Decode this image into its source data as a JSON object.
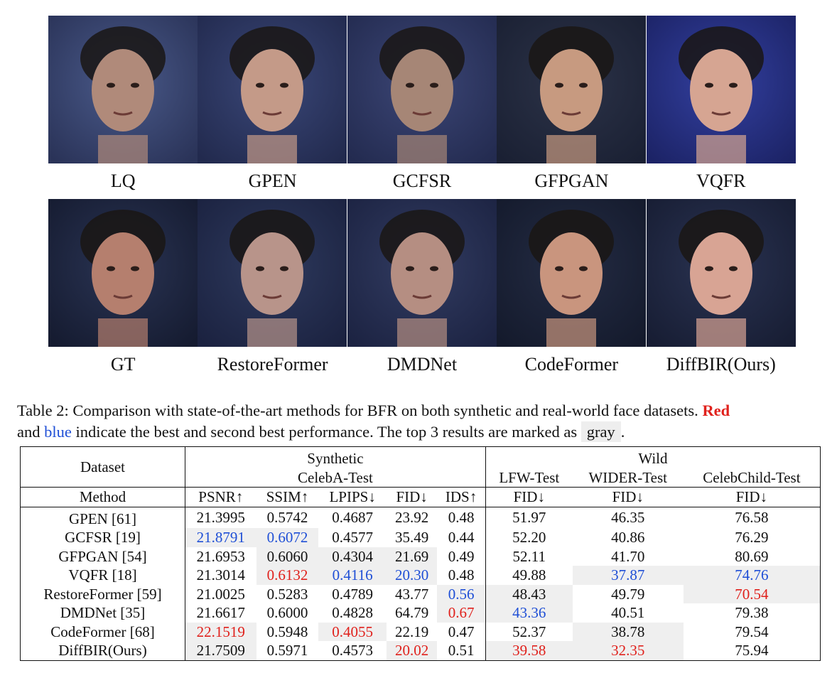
{
  "figure": {
    "row1_labels": [
      "LQ",
      "GPEN",
      "GCFSR",
      "GFPGAN",
      "VQFR"
    ],
    "row2_labels": [
      "GT",
      "RestoreFormer",
      "DMDNet",
      "CodeFormer",
      "DiffBIR(Ours)"
    ]
  },
  "caption": {
    "prefix": "Table 2: Comparison with state-of-the-art methods for BFR on both synthetic and real-world face datasets.",
    "red_word": "Red",
    "and": "and",
    "blue_word": "blue",
    "middle": "indicate the best and second best performance. The top 3 results are marked as",
    "gray_word": "gray",
    "end": "."
  },
  "table": {
    "dataset_label": "Dataset",
    "method_label": "Method",
    "synthetic_label": "Synthetic",
    "celeba_label": "CelebA-Test",
    "wild_label": "Wild",
    "wild_sets": [
      "LFW-Test",
      "WIDER-Test",
      "CelebChild-Test"
    ],
    "metrics": [
      "PSNR↑",
      "SSIM↑",
      "LPIPS↓",
      "FID↓",
      "IDS↑",
      "FID↓",
      "FID↓",
      "FID↓"
    ],
    "rows": [
      {
        "method": "GPEN [61]",
        "values": [
          "21.3995",
          "0.5742",
          "0.4687",
          "23.92",
          "0.48",
          "51.97",
          "46.35",
          "76.58"
        ],
        "styles": [
          "",
          "",
          "",
          "",
          "",
          "",
          "",
          ""
        ]
      },
      {
        "method": "GCFSR [19]",
        "values": [
          "21.8791",
          "0.6072",
          "0.4577",
          "35.49",
          "0.44",
          "52.20",
          "40.86",
          "76.29"
        ],
        "styles": [
          "b",
          "b",
          "",
          "",
          "",
          "",
          "",
          ""
        ]
      },
      {
        "method": "GFPGAN [54]",
        "values": [
          "21.6953",
          "0.6060",
          "0.4304",
          "21.69",
          "0.49",
          "52.11",
          "41.70",
          "80.69"
        ],
        "styles": [
          "",
          "g",
          "g",
          "g",
          "",
          "",
          "",
          ""
        ]
      },
      {
        "method": "VQFR [18]",
        "values": [
          "21.3014",
          "0.6132",
          "0.4116",
          "20.30",
          "0.48",
          "49.88",
          "37.87",
          "74.76"
        ],
        "styles": [
          "",
          "r",
          "b",
          "b",
          "",
          "",
          "b",
          "b"
        ]
      },
      {
        "method": "RestoreFormer [59]",
        "values": [
          "21.0025",
          "0.5283",
          "0.4789",
          "43.77",
          "0.56",
          "48.43",
          "49.79",
          "70.54"
        ],
        "styles": [
          "",
          "",
          "",
          "",
          "b",
          "g",
          "",
          "r"
        ]
      },
      {
        "method": "DMDNet [35]",
        "values": [
          "21.6617",
          "0.6000",
          "0.4828",
          "64.79",
          "0.67",
          "43.36",
          "40.51",
          "79.38"
        ],
        "styles": [
          "",
          "",
          "",
          "",
          "r",
          "b",
          "",
          ""
        ]
      },
      {
        "method": "CodeFormer [68]",
        "values": [
          "22.1519",
          "0.5948",
          "0.4055",
          "22.19",
          "0.47",
          "52.37",
          "38.78",
          "79.54"
        ],
        "styles": [
          "r",
          "",
          "r",
          "",
          "",
          "",
          "g",
          ""
        ]
      },
      {
        "method": "DiffBIR(Ours)",
        "values": [
          "21.7509",
          "0.5971",
          "0.4573",
          "20.02",
          "0.51",
          "39.58",
          "32.35",
          "75.94"
        ],
        "styles": [
          "g",
          "",
          "",
          "r",
          "",
          "r",
          "r",
          ""
        ]
      }
    ]
  },
  "colors": {
    "best": "#e0211c",
    "second": "#1f4fd6",
    "top3": "#efefef"
  }
}
